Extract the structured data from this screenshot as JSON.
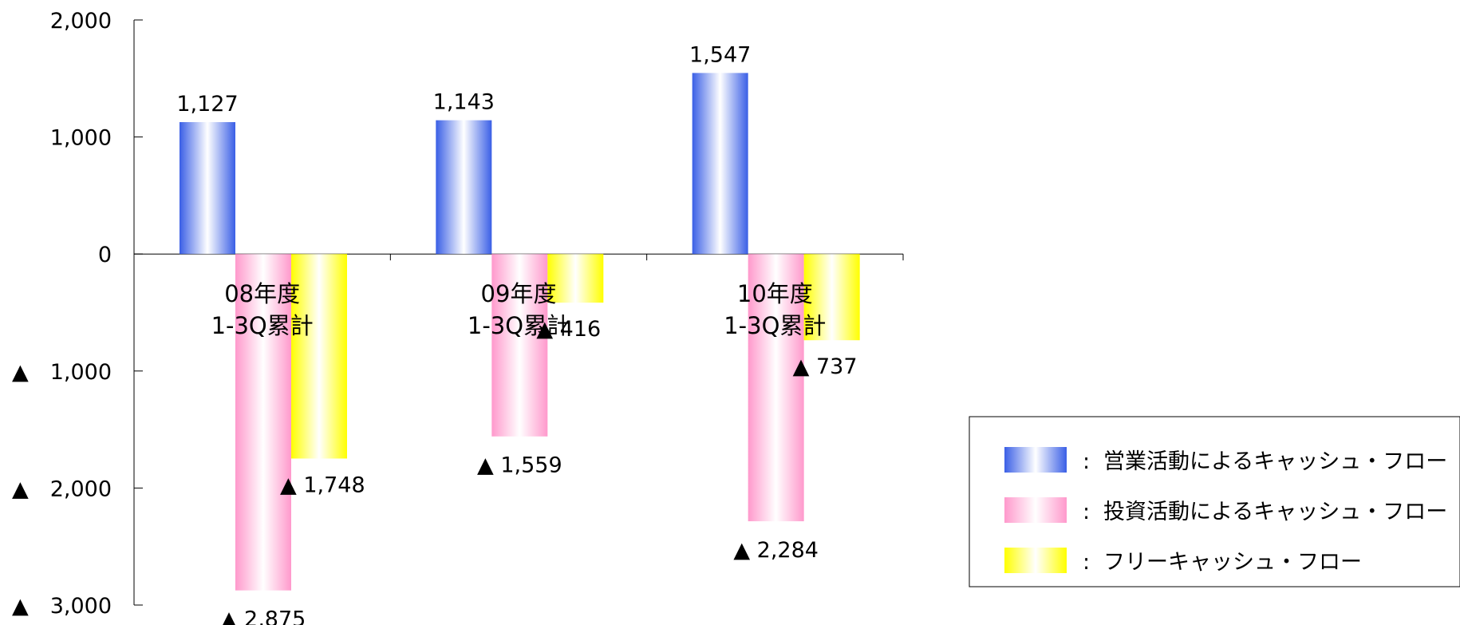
{
  "chart_data": {
    "type": "bar",
    "categories": [
      [
        "08年度",
        "1-3Q累計"
      ],
      [
        "09年度",
        "1-3Q累計"
      ],
      [
        "10年度",
        "1-3Q累計"
      ]
    ],
    "series": [
      {
        "name": "営業活動によるキャッシュ・フロー",
        "values": [
          1127,
          1143,
          1547
        ],
        "labels": [
          "1,127",
          "1,143",
          "1,547"
        ],
        "color": "#3a5fe6"
      },
      {
        "name": "投資活動によるキャッシュ・フロー",
        "values": [
          -2875,
          -1559,
          -2284
        ],
        "labels": [
          "▲ 2,875",
          "▲ 1,559",
          "▲ 2,284"
        ],
        "color": "#ff99cc"
      },
      {
        "name": "フリーキャッシュ・フロー",
        "values": [
          -1748,
          -416,
          -737
        ],
        "labels": [
          "▲ 1,748",
          "▲ 416",
          "▲ 737"
        ],
        "color": "#ffff00"
      }
    ],
    "ylim": [
      -3000,
      2000
    ],
    "yticks": [
      2000,
      1000,
      0,
      -1000,
      -2000,
      -3000
    ],
    "ytick_labels": [
      "2,000",
      "1,000",
      "0",
      "▲ 1,000",
      "▲ 2,000",
      "▲ 3,000"
    ],
    "legend_prefix": ":",
    "legend_position": "bottom-right",
    "grid": false
  }
}
